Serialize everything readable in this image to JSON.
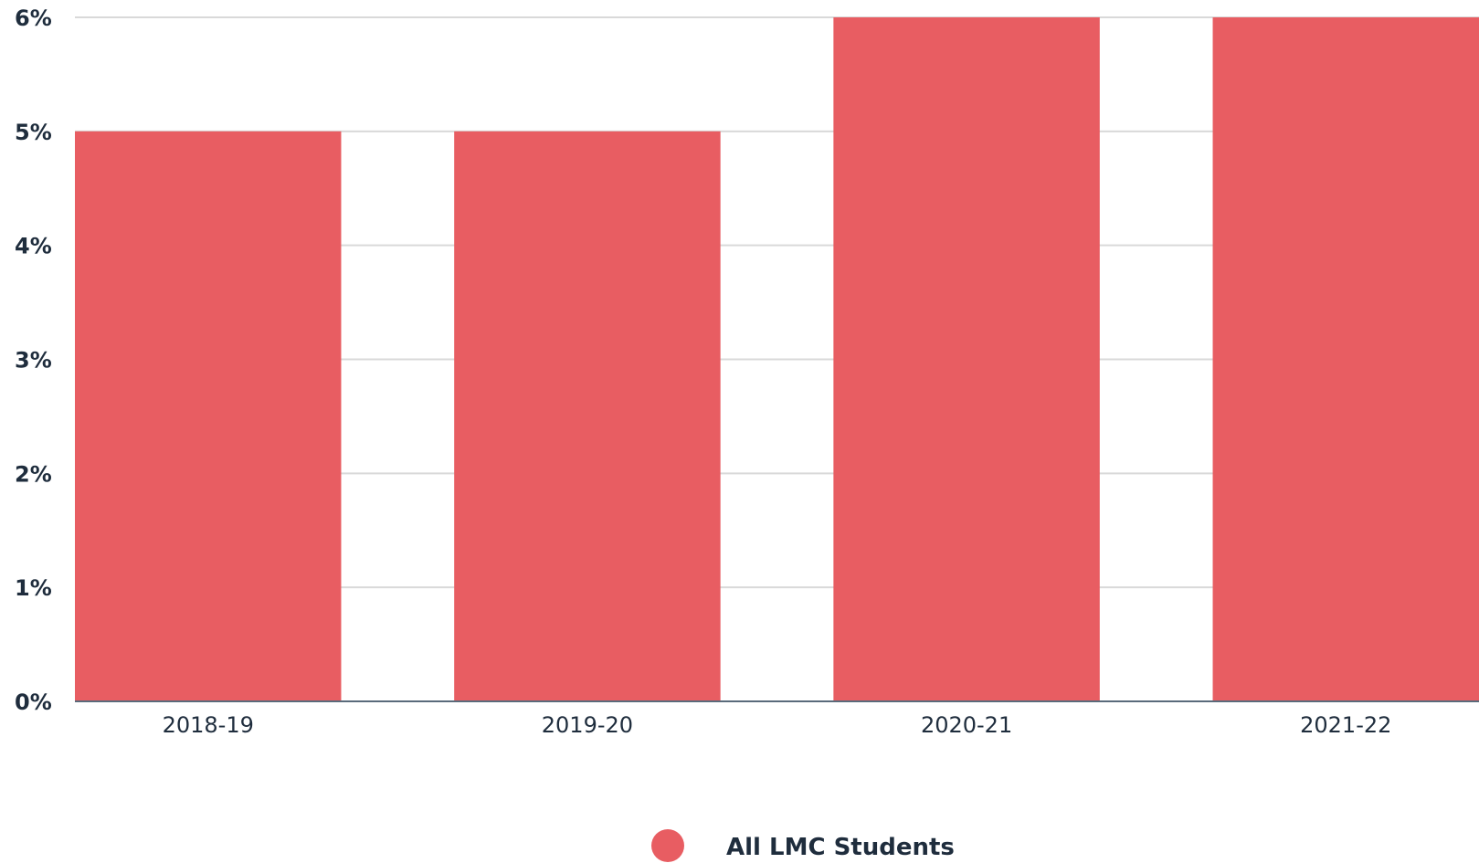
{
  "chart_data": {
    "type": "bar",
    "categories": [
      "2018-19",
      "2019-20",
      "2020-21",
      "2021-22"
    ],
    "series": [
      {
        "name": "All LMC Students",
        "values": [
          5,
          5,
          6,
          6
        ],
        "color": "#e85d62"
      }
    ],
    "ylim": [
      0,
      6
    ],
    "yticks": [
      0,
      1,
      2,
      3,
      4,
      5,
      6
    ],
    "ytick_format": "%",
    "grid": true,
    "legend": "bottom-center",
    "gridline_color": "#d9d9d9",
    "axis_color": "#5a6b7b"
  }
}
